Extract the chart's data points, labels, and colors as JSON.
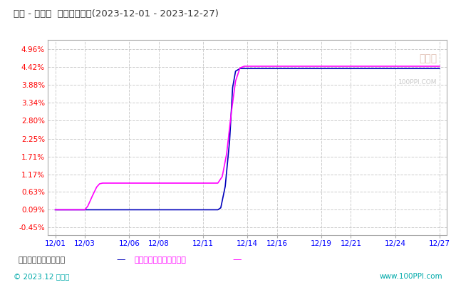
{
  "title": "焦炭 - 炼焦煤  价格趋势比较(2023-12-01 - 2023-12-27)",
  "bg_color": "#ffffff",
  "plot_bg_color": "#ffffff",
  "grid_color": "#cccccc",
  "x_labels": [
    "12/01",
    "12/03",
    "12/06",
    "12/08",
    "12/11",
    "12/14",
    "12/16",
    "12/19",
    "12/21",
    "12/24",
    "12/27"
  ],
  "x_positions": [
    0,
    2,
    5,
    7,
    10,
    13,
    15,
    18,
    20,
    23,
    26
  ],
  "y_ticks": [
    -0.45,
    0.09,
    0.63,
    1.17,
    1.71,
    2.25,
    2.8,
    3.34,
    3.88,
    4.42,
    4.96
  ],
  "ylim": [
    -0.68,
    5.25
  ],
  "xlim": [
    -0.5,
    26.5
  ],
  "jiaotanColor": "#0000bb",
  "lianjiaomeiColor": "#ff00ff",
  "jiaotanX": [
    0,
    1,
    2,
    3,
    4,
    5,
    6,
    7,
    8,
    9,
    10,
    10.5,
    10.8,
    11.0,
    11.2,
    11.5,
    11.8,
    12.0,
    12.2,
    12.5,
    13,
    14,
    15,
    16,
    17,
    18,
    19,
    20,
    21,
    22,
    23,
    24,
    25,
    26
  ],
  "jiaotanY": [
    0.09,
    0.09,
    0.09,
    0.09,
    0.09,
    0.09,
    0.09,
    0.09,
    0.09,
    0.09,
    0.09,
    0.09,
    0.09,
    0.09,
    0.15,
    0.8,
    2.2,
    3.8,
    4.3,
    4.38,
    4.38,
    4.38,
    4.38,
    4.38,
    4.38,
    4.38,
    4.38,
    4.38,
    4.38,
    4.38,
    4.38,
    4.38,
    4.38,
    4.38
  ],
  "lianjiaomeiX": [
    0,
    1,
    2,
    2.2,
    2.5,
    2.8,
    3.0,
    3.2,
    3.5,
    4,
    5,
    6,
    7,
    8,
    9,
    10,
    10.5,
    11.0,
    11.3,
    11.6,
    11.9,
    12.2,
    12.5,
    12.8,
    13.1,
    13.5,
    14,
    15,
    16,
    17,
    18,
    19,
    20,
    21,
    22,
    23,
    24,
    25,
    26
  ],
  "lianjiaomeiY": [
    0.09,
    0.09,
    0.09,
    0.2,
    0.5,
    0.78,
    0.88,
    0.9,
    0.9,
    0.9,
    0.9,
    0.9,
    0.9,
    0.9,
    0.9,
    0.9,
    0.9,
    0.9,
    1.1,
    1.8,
    3.0,
    4.0,
    4.4,
    4.45,
    4.45,
    4.45,
    4.45,
    4.45,
    4.45,
    4.45,
    4.45,
    4.45,
    4.45,
    4.45,
    4.45,
    4.45,
    4.45,
    4.45,
    4.45
  ],
  "legend_label1": "焦炭现货价格变化幅度",
  "legend_label2": "炼焦煤现货价格变化幅度",
  "legend_color1": "#0000bb",
  "legend_color2": "#ff00ff",
  "watermark_text": "生意社",
  "watermark_sub": "100PPI.COM",
  "copyright_text": "© 2023.12 生意社",
  "url_text": "www.100PPI.com",
  "title_color": "#333333",
  "ytick_color": "#ff0000",
  "xtick_color": "#0000ff"
}
